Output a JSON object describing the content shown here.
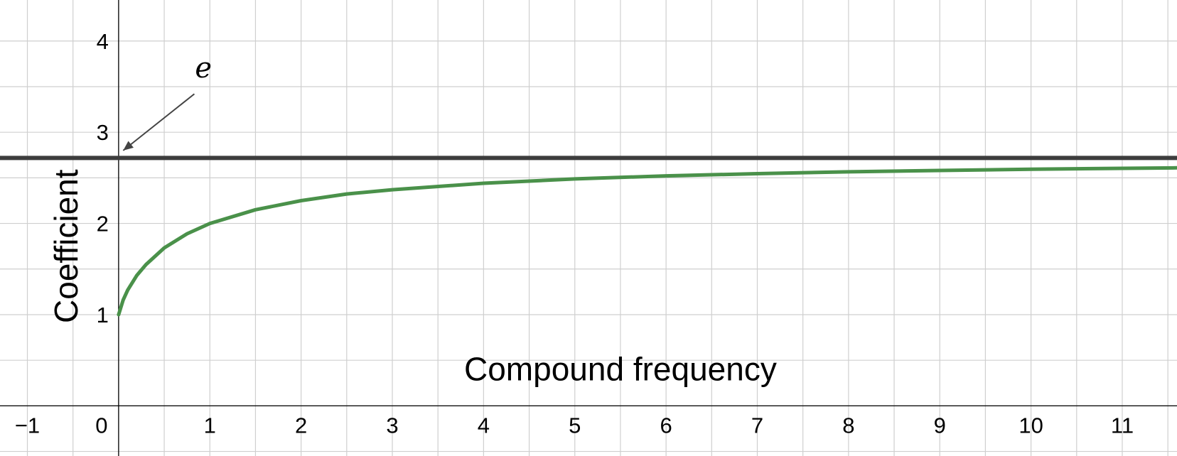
{
  "chart_data": {
    "type": "line",
    "title": "",
    "xlabel": "Compound frequency",
    "ylabel": "Coefficient",
    "xlim": [
      -1.3,
      11.6
    ],
    "ylim": [
      -0.55,
      4.45
    ],
    "grid": true,
    "x_ticks": [
      {
        "value": -1,
        "label": "−1"
      },
      {
        "value": 0,
        "label": "0"
      },
      {
        "value": 1,
        "label": "1"
      },
      {
        "value": 2,
        "label": "2"
      },
      {
        "value": 3,
        "label": "3"
      },
      {
        "value": 4,
        "label": "4"
      },
      {
        "value": 5,
        "label": "5"
      },
      {
        "value": 6,
        "label": "6"
      },
      {
        "value": 7,
        "label": "7"
      },
      {
        "value": 8,
        "label": "8"
      },
      {
        "value": 9,
        "label": "9"
      },
      {
        "value": 10,
        "label": "10"
      },
      {
        "value": 11,
        "label": "11"
      }
    ],
    "y_ticks": [
      {
        "value": 1,
        "label": "1"
      },
      {
        "value": 2,
        "label": "2"
      },
      {
        "value": 3,
        "label": "3"
      },
      {
        "value": 4,
        "label": "4"
      }
    ],
    "series": [
      {
        "color": "#4a914a",
        "x": [
          0,
          0.05,
          0.1,
          0.2,
          0.3,
          0.5,
          0.75,
          1,
          1.5,
          2,
          2.5,
          3,
          4,
          5,
          6,
          7,
          8,
          9,
          10,
          11,
          11.6
        ],
        "y": [
          1,
          1.161,
          1.27,
          1.431,
          1.549,
          1.732,
          1.887,
          2,
          2.15,
          2.25,
          2.323,
          2.37,
          2.441,
          2.488,
          2.522,
          2.546,
          2.566,
          2.581,
          2.594,
          2.604,
          2.61
        ]
      },
      {
        "color": "#3d3d3d",
        "x": [
          -1.3,
          11.6
        ],
        "y": [
          2.718,
          2.718
        ]
      }
    ],
    "annotations": [
      {
        "text": "e",
        "target": [
          0.05,
          2.8
        ]
      }
    ]
  }
}
